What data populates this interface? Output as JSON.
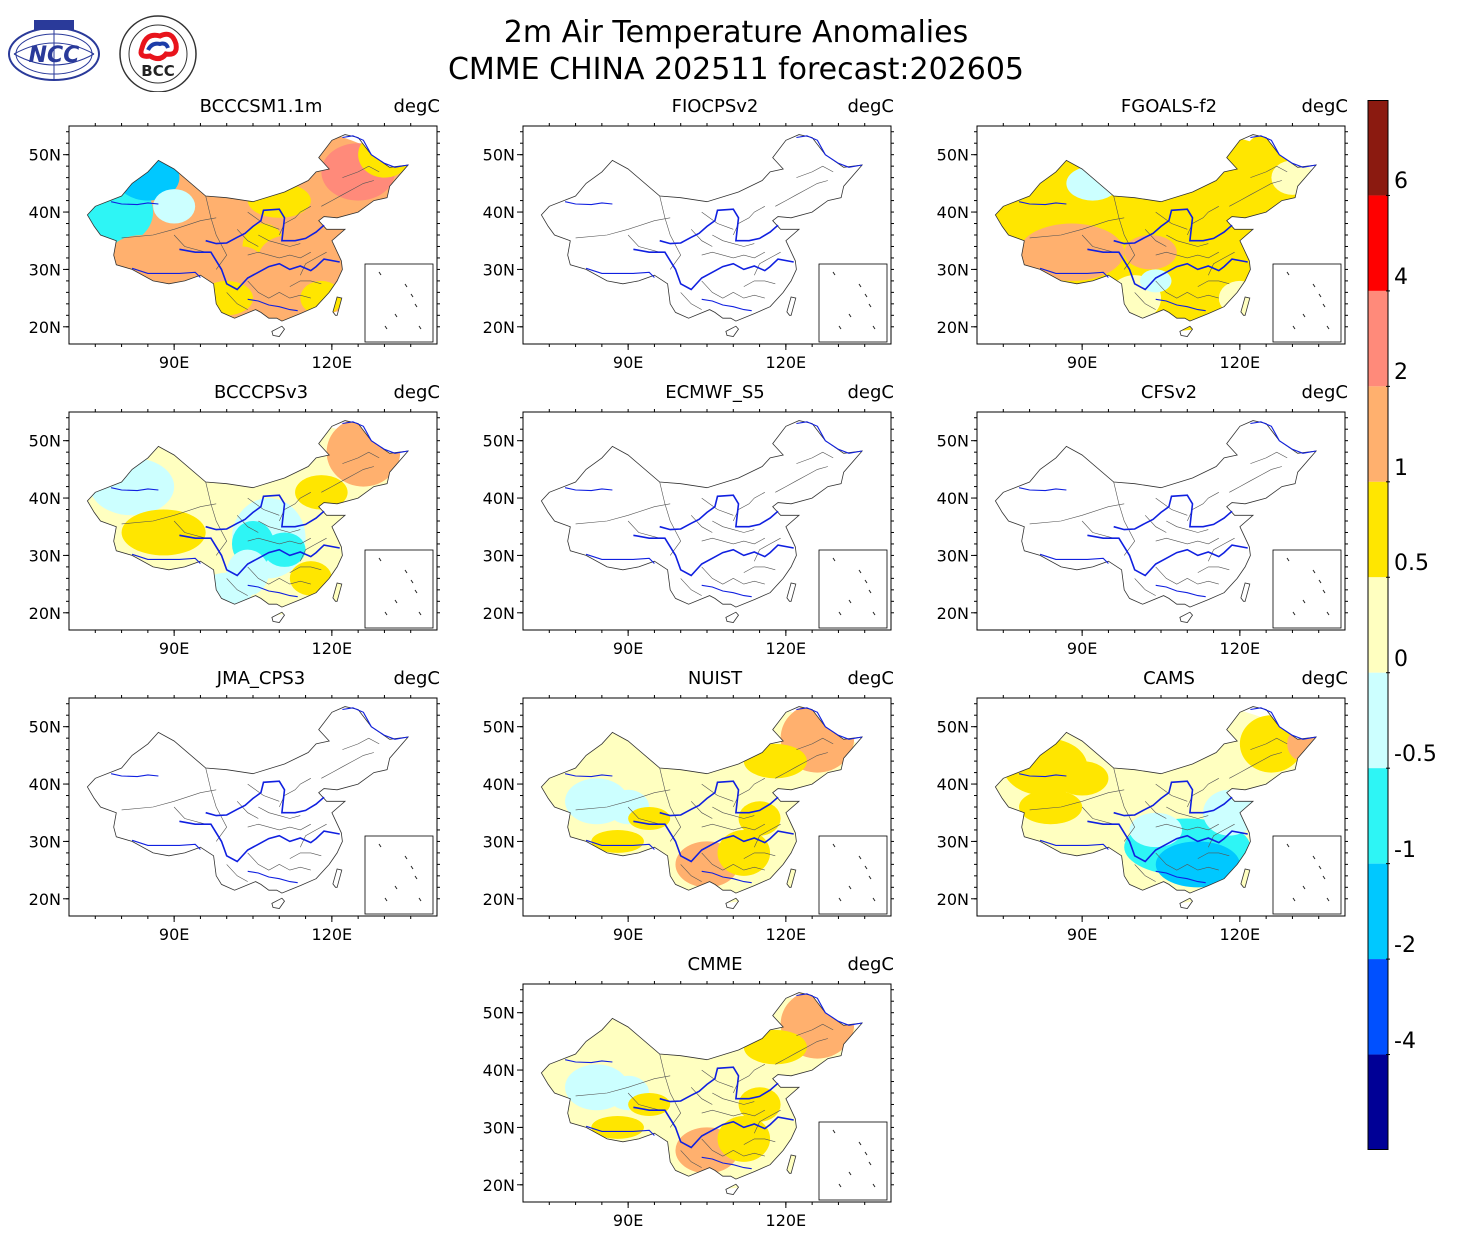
{
  "header": {
    "title_line1": "2m Air Temperature Anomalies",
    "title_line2": "CMME CHINA 202511 forecast:202605"
  },
  "logos": [
    {
      "name": "ncc-logo",
      "text": "NCC"
    },
    {
      "name": "bcc-logo",
      "text": "BCC"
    }
  ],
  "units": "degC",
  "axes": {
    "lat_ticks": [
      "50N",
      "40N",
      "30N",
      "20N"
    ],
    "lon_ticks": [
      "90E",
      "120E"
    ]
  },
  "panels": [
    {
      "model": "BCCCSM1.1m",
      "has_data": true,
      "scheme": "warm-west-cold"
    },
    {
      "model": "FIOCPSv2",
      "has_data": false
    },
    {
      "model": "FGOALS-f2",
      "has_data": true,
      "scheme": "warm"
    },
    {
      "model": "BCCCPSv3",
      "has_data": true,
      "scheme": "mixed"
    },
    {
      "model": "ECMWF_S5",
      "has_data": false
    },
    {
      "model": "CFSv2",
      "has_data": false
    },
    {
      "model": "JMA_CPS3",
      "has_data": false
    },
    {
      "model": "NUIST",
      "has_data": true,
      "scheme": "mild"
    },
    {
      "model": "CAMS",
      "has_data": true,
      "scheme": "cool-south"
    },
    {
      "model": "CMME",
      "has_data": true,
      "scheme": "mild"
    }
  ],
  "colorbar": {
    "labels": [
      "6",
      "4",
      "2",
      "1",
      "0.5",
      "0",
      "-0.5",
      "-1",
      "-2",
      "-4"
    ],
    "colors_top_to_bottom": [
      "#8b1a10",
      "#ff0000",
      "#ff8a7a",
      "#ffb06e",
      "#ffe600",
      "#ffffc0",
      "#ccffff",
      "#2ef5f5",
      "#00c8ff",
      "#0050ff",
      "#000096"
    ]
  }
}
